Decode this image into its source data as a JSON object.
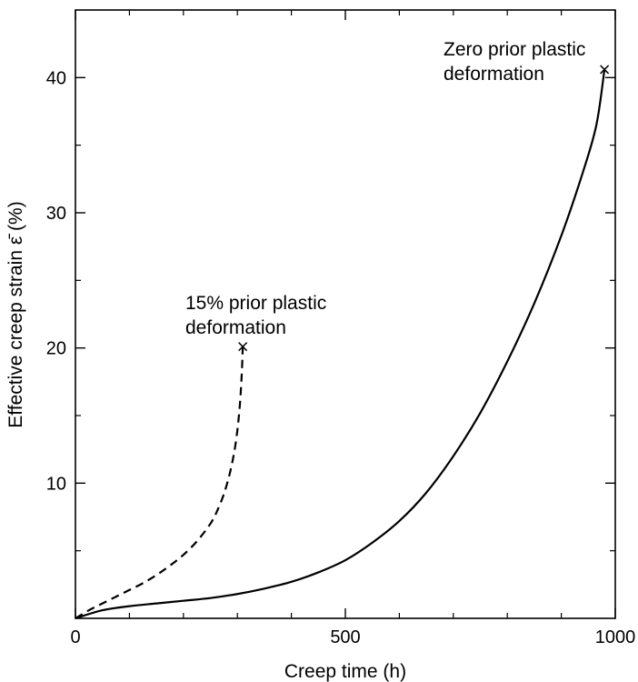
{
  "chart_data": {
    "type": "line",
    "xlabel": "Creep time (h)",
    "ylabel": "Effective creep strain ε̄ (%)",
    "xlim": [
      0,
      1000
    ],
    "ylim": [
      0,
      45
    ],
    "x_major_ticks": [
      0,
      500,
      1000
    ],
    "x_tick_labels": [
      "0",
      "500",
      "1000"
    ],
    "x_minor_ticks": [
      100,
      200,
      300,
      400,
      600,
      700,
      800,
      900
    ],
    "y_major_ticks": [
      10,
      20,
      30,
      40
    ],
    "y_tick_labels": [
      "10",
      "20",
      "30",
      "40"
    ],
    "y_minor_ticks": [
      5,
      15,
      25,
      35
    ],
    "grid": false,
    "legend": "none",
    "series": [
      {
        "style": "solid",
        "end_marker": "x",
        "points": [
          [
            0,
            0
          ],
          [
            50,
            0.6
          ],
          [
            100,
            0.9
          ],
          [
            150,
            1.1
          ],
          [
            200,
            1.3
          ],
          [
            250,
            1.5
          ],
          [
            300,
            1.8
          ],
          [
            350,
            2.2
          ],
          [
            400,
            2.7
          ],
          [
            450,
            3.4
          ],
          [
            500,
            4.3
          ],
          [
            550,
            5.6
          ],
          [
            600,
            7.2
          ],
          [
            650,
            9.3
          ],
          [
            700,
            12.0
          ],
          [
            750,
            15.2
          ],
          [
            800,
            19.0
          ],
          [
            850,
            23.3
          ],
          [
            900,
            28.3
          ],
          [
            940,
            33.0
          ],
          [
            965,
            36.5
          ],
          [
            980,
            40.6
          ]
        ]
      },
      {
        "style": "dashed",
        "end_marker": "x",
        "points": [
          [
            0,
            0
          ],
          [
            25,
            0.6
          ],
          [
            50,
            1.1
          ],
          [
            75,
            1.6
          ],
          [
            100,
            2.1
          ],
          [
            125,
            2.6
          ],
          [
            150,
            3.2
          ],
          [
            175,
            3.9
          ],
          [
            200,
            4.7
          ],
          [
            225,
            5.7
          ],
          [
            250,
            7.0
          ],
          [
            262,
            7.9
          ],
          [
            275,
            9.2
          ],
          [
            287,
            10.9
          ],
          [
            297,
            13.0
          ],
          [
            304,
            15.5
          ],
          [
            308,
            18.0
          ],
          [
            310,
            20.1
          ]
        ]
      }
    ],
    "annotations": [
      {
        "text_lines": [
          "Zero prior plastic",
          "deformation"
        ]
      },
      {
        "text_lines": [
          "15% prior plastic",
          "deformation"
        ]
      }
    ]
  }
}
